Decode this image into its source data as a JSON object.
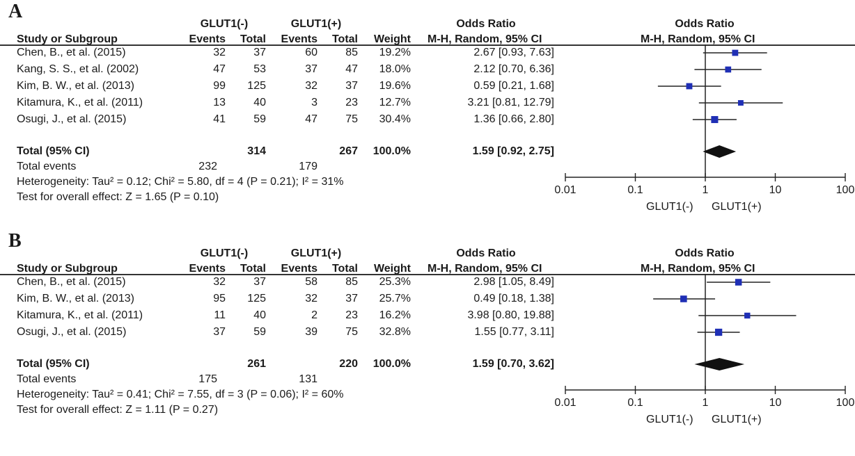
{
  "chart_data": [
    {
      "type": "forest",
      "panel_label": "A",
      "group1_label": "GLUT1(-)",
      "group2_label": "GLUT1(+)",
      "col_headers": {
        "study": "Study or Subgroup",
        "events1": "Events",
        "total1": "Total",
        "events2": "Events",
        "total2": "Total",
        "weight": "Weight",
        "or_title": "Odds Ratio",
        "or_method": "M-H, Random, 95% CI",
        "plot_title": "Odds Ratio",
        "plot_method": "M-H, Random, 95% CI"
      },
      "studies": [
        {
          "study": "Chen, B., et al. (2015)",
          "events1": "32",
          "total1": "37",
          "events2": "60",
          "total2": "85",
          "weight": "19.2%",
          "ci_text": "2.67 [0.93, 7.63]",
          "or": 2.67,
          "lo": 0.93,
          "hi": 7.63
        },
        {
          "study": "Kang, S. S., et al. (2002)",
          "events1": "47",
          "total1": "53",
          "events2": "37",
          "total2": "47",
          "weight": "18.0%",
          "ci_text": "2.12 [0.70, 6.36]",
          "or": 2.12,
          "lo": 0.7,
          "hi": 6.36
        },
        {
          "study": "Kim, B. W., et al. (2013)",
          "events1": "99",
          "total1": "125",
          "events2": "32",
          "total2": "37",
          "weight": "19.6%",
          "ci_text": "0.59 [0.21, 1.68]",
          "or": 0.59,
          "lo": 0.21,
          "hi": 1.68
        },
        {
          "study": "Kitamura, K., et al. (2011)",
          "events1": "13",
          "total1": "40",
          "events2": "3",
          "total2": "23",
          "weight": "12.7%",
          "ci_text": "3.21 [0.81, 12.79]",
          "or": 3.21,
          "lo": 0.81,
          "hi": 12.79
        },
        {
          "study": "Osugi, J., et al. (2015)",
          "events1": "41",
          "total1": "59",
          "events2": "47",
          "total2": "75",
          "weight": "30.4%",
          "ci_text": "1.36 [0.66, 2.80]",
          "or": 1.36,
          "lo": 0.66,
          "hi": 2.8
        }
      ],
      "total": {
        "label": "Total (95% CI)",
        "total1": "314",
        "total2": "267",
        "weight": "100.0%",
        "ci_text": "1.59 [0.92, 2.75]",
        "or": 1.59,
        "lo": 0.92,
        "hi": 2.75
      },
      "total_events": {
        "label": "Total events",
        "events1": "232",
        "events2": "179"
      },
      "heterogeneity": "Heterogeneity: Tau² = 0.12; Chi² = 5.80, df = 4 (P = 0.21); I² = 31%",
      "overall_effect": "Test for overall effect: Z = 1.65 (P = 0.10)",
      "axis": {
        "scale": "log",
        "ticks": [
          0.01,
          0.1,
          1,
          10,
          100
        ],
        "tick_labels": [
          "0.01",
          "0.1",
          "1",
          "10",
          "100"
        ],
        "left_label": "GLUT1(-)",
        "right_label": "GLUT1(+)"
      }
    },
    {
      "type": "forest",
      "panel_label": "B",
      "group1_label": "GLUT1(-)",
      "group2_label": "GLUT1(+)",
      "col_headers": {
        "study": "Study or Subgroup",
        "events1": "Events",
        "total1": "Total",
        "events2": "Events",
        "total2": "Total",
        "weight": "Weight",
        "or_title": "Odds Ratio",
        "or_method": "M-H, Random, 95% CI",
        "plot_title": "Odds Ratio",
        "plot_method": "M-H, Random, 95% CI"
      },
      "studies": [
        {
          "study": "Chen, B., et al. (2015)",
          "events1": "32",
          "total1": "37",
          "events2": "58",
          "total2": "85",
          "weight": "25.3%",
          "ci_text": "2.98 [1.05, 8.49]",
          "or": 2.98,
          "lo": 1.05,
          "hi": 8.49
        },
        {
          "study": "Kim, B. W., et al. (2013)",
          "events1": "95",
          "total1": "125",
          "events2": "32",
          "total2": "37",
          "weight": "25.7%",
          "ci_text": "0.49 [0.18, 1.38]",
          "or": 0.49,
          "lo": 0.18,
          "hi": 1.38
        },
        {
          "study": "Kitamura, K., et al. (2011)",
          "events1": "11",
          "total1": "40",
          "events2": "2",
          "total2": "23",
          "weight": "16.2%",
          "ci_text": "3.98 [0.80, 19.88]",
          "or": 3.98,
          "lo": 0.8,
          "hi": 19.88
        },
        {
          "study": "Osugi, J., et al. (2015)",
          "events1": "37",
          "total1": "59",
          "events2": "39",
          "total2": "75",
          "weight": "32.8%",
          "ci_text": "1.55 [0.77, 3.11]",
          "or": 1.55,
          "lo": 0.77,
          "hi": 3.11
        }
      ],
      "total": {
        "label": "Total (95% CI)",
        "total1": "261",
        "total2": "220",
        "weight": "100.0%",
        "ci_text": "1.59 [0.70, 3.62]",
        "or": 1.59,
        "lo": 0.7,
        "hi": 3.62
      },
      "total_events": {
        "label": "Total events",
        "events1": "175",
        "events2": "131"
      },
      "heterogeneity": "Heterogeneity: Tau² = 0.41; Chi² = 7.55, df = 3 (P = 0.06); I² = 60%",
      "overall_effect": "Test for overall effect: Z = 1.11 (P = 0.27)",
      "axis": {
        "scale": "log",
        "ticks": [
          0.01,
          0.1,
          1,
          10,
          100
        ],
        "tick_labels": [
          "0.01",
          "0.1",
          "1",
          "10",
          "100"
        ],
        "left_label": "GLUT1(-)",
        "right_label": "GLUT1(+)"
      }
    }
  ],
  "colors": {
    "marker": "#1f2fb5",
    "text": "#1a1a1a",
    "line": "#222222"
  }
}
